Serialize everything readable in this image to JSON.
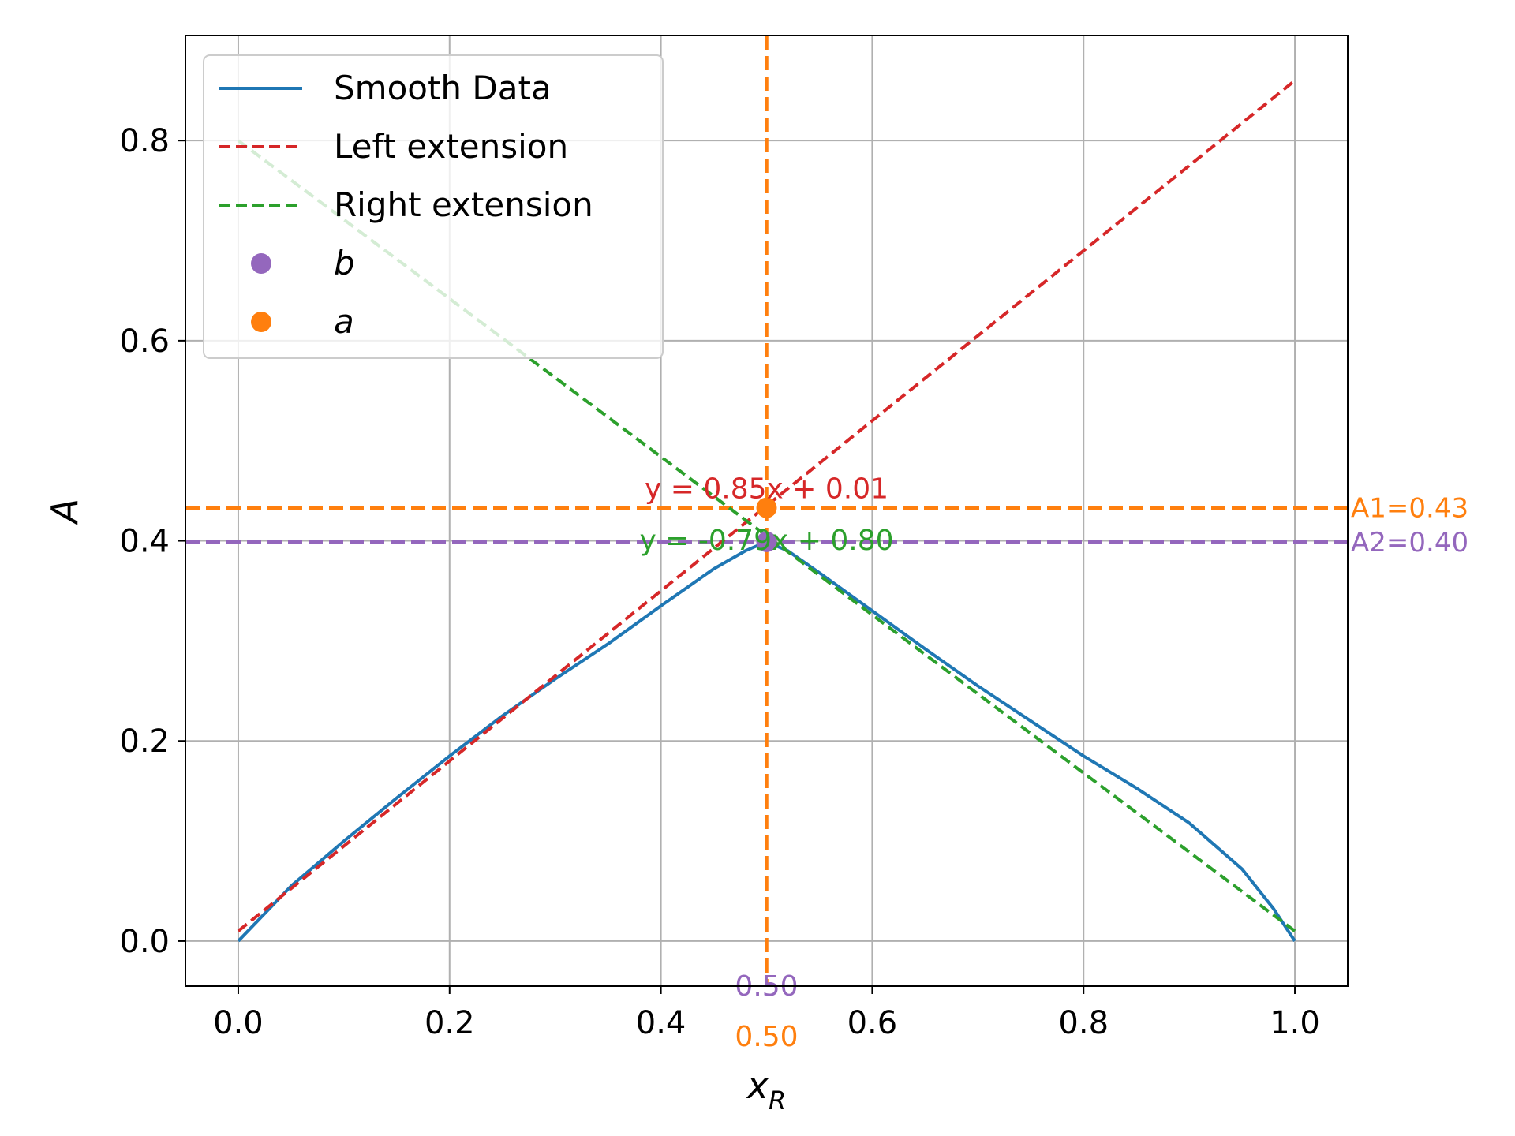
{
  "chart_data": {
    "type": "line",
    "xlabel_main": "x",
    "xlabel_sub": "R",
    "ylabel": "A",
    "xlim": [
      -0.05,
      1.05
    ],
    "ylim": [
      -0.045,
      0.905
    ],
    "xticks": [
      0.0,
      0.2,
      0.4,
      0.6,
      0.8,
      1.0
    ],
    "xtick_labels": [
      "0.0",
      "0.2",
      "0.4",
      "0.6",
      "0.8",
      "1.0"
    ],
    "yticks": [
      0.0,
      0.2,
      0.4,
      0.6,
      0.8
    ],
    "ytick_labels": [
      "0.0",
      "0.2",
      "0.4",
      "0.6",
      "0.8"
    ],
    "grid": true,
    "legend_position": "top-left",
    "series": [
      {
        "name": "Smooth Data",
        "style": "solid",
        "color": "#1f77b4",
        "x": [
          0.0,
          0.05,
          0.1,
          0.15,
          0.2,
          0.25,
          0.3,
          0.35,
          0.4,
          0.45,
          0.48,
          0.5,
          0.52,
          0.55,
          0.6,
          0.65,
          0.7,
          0.75,
          0.8,
          0.85,
          0.9,
          0.95,
          0.98,
          1.0
        ],
        "y": [
          0.0,
          0.055,
          0.1,
          0.143,
          0.185,
          0.225,
          0.262,
          0.297,
          0.335,
          0.372,
          0.39,
          0.399,
          0.39,
          0.368,
          0.33,
          0.292,
          0.255,
          0.22,
          0.185,
          0.153,
          0.118,
          0.072,
          0.032,
          0.0
        ]
      },
      {
        "name": "Left extension",
        "style": "dashed",
        "color": "#d62728",
        "x": [
          0.0,
          1.0
        ],
        "y": [
          0.01,
          0.86
        ]
      },
      {
        "name": "Right extension",
        "style": "dashed",
        "color": "#2ca02c",
        "x": [
          0.0,
          1.0
        ],
        "y": [
          0.8,
          0.01
        ]
      }
    ],
    "points": [
      {
        "name": "b",
        "x": 0.5,
        "y": 0.399,
        "color": "#9467bd"
      },
      {
        "name": "a",
        "x": 0.5,
        "y": 0.433,
        "color": "#ff7f0e"
      }
    ],
    "reference_lines": [
      {
        "orientation": "horizontal",
        "value": 0.433,
        "color": "#ff7f0e",
        "label": "A1=0.43"
      },
      {
        "orientation": "horizontal",
        "value": 0.399,
        "color": "#9467bd",
        "label": "A2=0.40"
      },
      {
        "orientation": "vertical",
        "value": 0.5,
        "color": "#ff7f0e"
      }
    ],
    "annotations": [
      {
        "text": "y = 0.85x + 0.01",
        "x": 0.5,
        "y": 0.46,
        "color": "#d62728"
      },
      {
        "text": "y = -0.79x + 0.80",
        "x": 0.5,
        "y": 0.41,
        "color": "#2ca02c"
      },
      {
        "text": "0.50",
        "color": "#9467bd"
      },
      {
        "text": "0.50",
        "color": "#ff7f0e"
      }
    ]
  }
}
